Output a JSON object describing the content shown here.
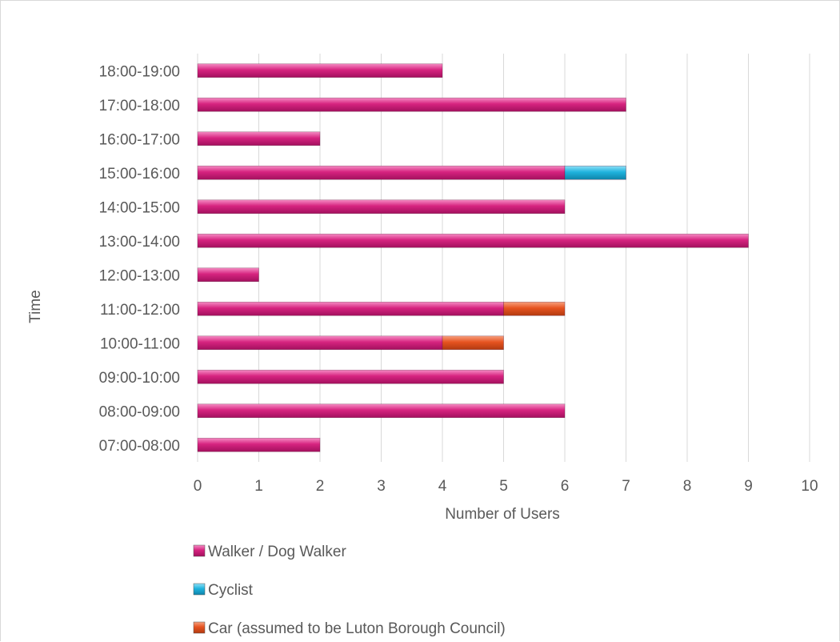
{
  "chart_data": {
    "type": "bar",
    "orientation": "horizontal",
    "stacked": true,
    "title": "",
    "xlabel": "Number of Users",
    "ylabel": "Time",
    "xlim": [
      0,
      10
    ],
    "x_ticks": [
      0,
      1,
      2,
      3,
      4,
      5,
      6,
      7,
      8,
      9,
      10
    ],
    "grid": true,
    "legend_position": "bottom",
    "categories": [
      "07:00-08:00",
      "08:00-09:00",
      "09:00-10:00",
      "10:00-11:00",
      "11:00-12:00",
      "12:00-13:00",
      "13:00-14:00",
      "14:00-15:00",
      "15:00-16:00",
      "16:00-17:00",
      "17:00-18:00",
      "18:00-19:00"
    ],
    "series": [
      {
        "name": "Walker / Dog Walker",
        "color": "#D6237F",
        "values": [
          2,
          6,
          5,
          4,
          5,
          1,
          9,
          6,
          6,
          2,
          7,
          4
        ]
      },
      {
        "name": "Cyclist",
        "color": "#1FB3DE",
        "values": [
          0,
          0,
          0,
          0,
          0,
          0,
          0,
          0,
          1,
          0,
          0,
          0
        ]
      },
      {
        "name": "Car (assumed to be Luton Borough Council)",
        "color": "#E65320",
        "values": [
          0,
          0,
          0,
          1,
          1,
          0,
          0,
          0,
          0,
          0,
          0,
          0
        ]
      }
    ]
  }
}
